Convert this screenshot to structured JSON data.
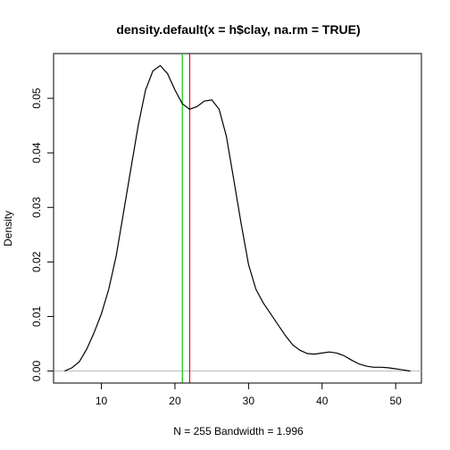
{
  "chart_data": {
    "type": "line",
    "title": "density.default(x = h$clay, na.rm = TRUE)",
    "xlabel": "N = 255   Bandwidth = 1.996",
    "ylabel": "Density",
    "xlim": [
      3.5,
      53.5
    ],
    "ylim": [
      -0.0022,
      0.0582
    ],
    "x_ticks": [
      10,
      20,
      30,
      40,
      50
    ],
    "y_ticks": [
      0.0,
      0.01,
      0.02,
      0.03,
      0.04,
      0.05
    ],
    "y_tick_labels": [
      "0.00",
      "0.01",
      "0.02",
      "0.03",
      "0.04",
      "0.05"
    ],
    "x_tick_labels": [
      "10",
      "20",
      "30",
      "40",
      "50"
    ],
    "grid": false,
    "series": [
      {
        "color": "#000000",
        "x": [
          5.0,
          6.0,
          7.0,
          8.0,
          9.0,
          10.0,
          11.0,
          12.0,
          13.0,
          14.0,
          15.0,
          16.0,
          17.0,
          18.0,
          19.0,
          20.0,
          21.0,
          22.0,
          23.0,
          24.0,
          25.0,
          26.0,
          27.0,
          28.0,
          29.0,
          30.0,
          31.0,
          32.0,
          33.0,
          34.0,
          35.0,
          36.0,
          37.0,
          38.0,
          39.0,
          40.0,
          41.0,
          42.0,
          43.0,
          44.0,
          45.0,
          46.0,
          47.0,
          48.0,
          49.0,
          50.0,
          51.0,
          52.0
        ],
        "y": [
          0.0,
          0.0006,
          0.0017,
          0.004,
          0.007,
          0.0105,
          0.015,
          0.021,
          0.029,
          0.037,
          0.045,
          0.0515,
          0.055,
          0.056,
          0.0545,
          0.0515,
          0.049,
          0.048,
          0.0485,
          0.0495,
          0.0497,
          0.048,
          0.043,
          0.035,
          0.027,
          0.0195,
          0.015,
          0.0125,
          0.0105,
          0.0085,
          0.0065,
          0.0048,
          0.0038,
          0.0032,
          0.0031,
          0.0033,
          0.0035,
          0.0033,
          0.0028,
          0.002,
          0.0013,
          0.0009,
          0.0007,
          0.0007,
          0.0006,
          0.0004,
          0.0002,
          0.0
        ]
      }
    ],
    "vertical_lines": [
      {
        "color": "#00cc00",
        "x": 21.0
      },
      {
        "color": "#ff0000",
        "x": 22.0
      }
    ],
    "baseline": {
      "color": "#bebebe",
      "y": 0.0
    }
  }
}
